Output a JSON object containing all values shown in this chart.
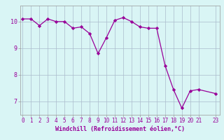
{
  "x_values": [
    0,
    1,
    2,
    3,
    4,
    5,
    6,
    7,
    8,
    9,
    10,
    11,
    12,
    13,
    14,
    15,
    16,
    17,
    18,
    19,
    20,
    21,
    23
  ],
  "y_values": [
    10.1,
    10.1,
    9.85,
    10.1,
    10.0,
    10.0,
    9.75,
    9.8,
    9.55,
    8.8,
    9.4,
    10.05,
    10.15,
    10.0,
    9.8,
    9.75,
    9.75,
    8.35,
    7.45,
    6.75,
    7.4,
    7.45,
    7.3
  ],
  "line_color": "#990099",
  "marker": "D",
  "marker_size": 2.2,
  "bg_color": "#d9f5f5",
  "grid_color": "#aabbcc",
  "xlabel": "Windchill (Refroidissement éolien,°C)",
  "xlabel_color": "#990099",
  "ylim": [
    6.5,
    10.6
  ],
  "yticks": [
    7,
    8,
    9,
    10
  ],
  "xticks": [
    0,
    1,
    2,
    3,
    4,
    5,
    6,
    7,
    8,
    9,
    10,
    11,
    12,
    13,
    14,
    15,
    16,
    17,
    18,
    19,
    20,
    21,
    23
  ],
  "xlim": [
    -0.3,
    23.5
  ],
  "tick_fontsize": 5.5,
  "xlabel_fontsize": 6.0,
  "linewidth": 0.9
}
